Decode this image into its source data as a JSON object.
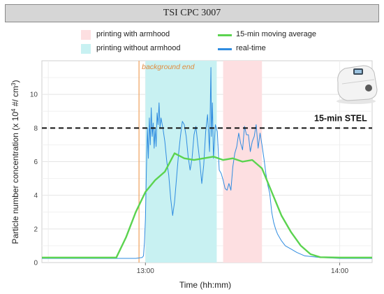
{
  "header": {
    "title": "TSI CPC 3007"
  },
  "legend": [
    {
      "label": "printing with armhood",
      "kind": "box",
      "color": "#fddfe1"
    },
    {
      "label": "printing without armhood",
      "kind": "box",
      "color": "#c8f1f2"
    },
    {
      "label": "15-min moving average",
      "kind": "line",
      "color": "#5bd34f"
    },
    {
      "label": "real-time",
      "kind": "line",
      "color": "#2f8ce0"
    }
  ],
  "annotations": {
    "background_end": "background end",
    "stel": "15-min STEL"
  },
  "chart_data": {
    "type": "line",
    "xlabel": "Time (hh:mm)",
    "ylabel_main": "Particle number concentration (x 10",
    "ylabel_sup": "4",
    "ylabel_rest": " #/ cm",
    "ylabel_sup2": "3",
    "ylabel_end": ")",
    "xlim": [
      12.467,
      14.167
    ],
    "ylim": [
      0,
      12
    ],
    "x_ticks": [
      {
        "value": 13.0,
        "label": "13:00"
      },
      {
        "value": 14.0,
        "label": "14:00"
      }
    ],
    "y_ticks": [
      0,
      2,
      4,
      6,
      8,
      10
    ],
    "grid": true,
    "threshold": {
      "value": 8,
      "label": "15-min STEL"
    },
    "background_end_x": 12.967,
    "shaded_regions": [
      {
        "label": "printing without armhood",
        "x": [
          13.0,
          13.367
        ],
        "color": "#c8f1f2"
      },
      {
        "label": "printing with armhood",
        "x": [
          13.4,
          13.6
        ],
        "color": "#fddfe1"
      }
    ],
    "series": [
      {
        "name": "real-time",
        "color": "#2f8ce0",
        "x": [
          12.467,
          12.95,
          12.983,
          12.99,
          12.995,
          13.0,
          13.005,
          13.01,
          13.015,
          13.02,
          13.025,
          13.03,
          13.035,
          13.04,
          13.045,
          13.05,
          13.055,
          13.06,
          13.065,
          13.07,
          13.075,
          13.08,
          13.09,
          13.1,
          13.11,
          13.12,
          13.13,
          13.14,
          13.15,
          13.16,
          13.17,
          13.18,
          13.19,
          13.2,
          13.21,
          13.22,
          13.23,
          13.24,
          13.25,
          13.26,
          13.27,
          13.28,
          13.29,
          13.3,
          13.31,
          13.32,
          13.33,
          13.337,
          13.34,
          13.345,
          13.35,
          13.36,
          13.37,
          13.38,
          13.39,
          13.4,
          13.41,
          13.42,
          13.43,
          13.44,
          13.45,
          13.46,
          13.47,
          13.48,
          13.49,
          13.5,
          13.51,
          13.52,
          13.53,
          13.54,
          13.55,
          13.56,
          13.57,
          13.58,
          13.59,
          13.6,
          13.61,
          13.62,
          13.63,
          13.64,
          13.65,
          13.66,
          13.67,
          13.68,
          13.7,
          13.72,
          13.75,
          13.78,
          13.82,
          13.9,
          14.0,
          14.167
        ],
        "y": [
          0.25,
          0.25,
          0.3,
          0.4,
          1.2,
          2.6,
          5.5,
          8.0,
          6.2,
          8.6,
          7.0,
          9.2,
          7.5,
          8.3,
          6.8,
          8.0,
          6.9,
          8.9,
          8.2,
          9.5,
          8.0,
          8.6,
          8.0,
          7.2,
          6.0,
          5.2,
          3.8,
          2.8,
          3.6,
          5.0,
          6.4,
          7.5,
          8.4,
          8.2,
          7.5,
          6.3,
          5.5,
          6.2,
          7.6,
          8.1,
          7.0,
          6.0,
          4.7,
          5.8,
          7.8,
          8.8,
          6.6,
          11.6,
          7.5,
          9.5,
          6.2,
          8.2,
          7.8,
          5.5,
          5.3,
          4.9,
          4.4,
          4.3,
          4.7,
          4.3,
          5.7,
          6.5,
          6.9,
          7.7,
          7.1,
          6.7,
          8.1,
          7.6,
          7.6,
          6.6,
          7.2,
          7.5,
          8.2,
          6.8,
          7.7,
          7.0,
          6.2,
          5.3,
          4.6,
          4.1,
          3.0,
          2.4,
          2.0,
          1.7,
          1.3,
          1.0,
          0.8,
          0.6,
          0.4,
          0.3,
          0.25,
          0.25
        ]
      },
      {
        "name": "15-min moving average",
        "color": "#5bd34f",
        "x": [
          12.467,
          12.85,
          12.9,
          12.95,
          13.0,
          13.05,
          13.1,
          13.15,
          13.2,
          13.25,
          13.3,
          13.35,
          13.4,
          13.45,
          13.5,
          13.55,
          13.6,
          13.65,
          13.7,
          13.75,
          13.8,
          13.85,
          13.9,
          14.0,
          14.167
        ],
        "y": [
          0.3,
          0.3,
          1.5,
          3.0,
          4.2,
          4.9,
          5.4,
          6.5,
          6.2,
          6.1,
          6.2,
          6.3,
          6.1,
          6.2,
          6.0,
          6.1,
          5.6,
          4.2,
          2.8,
          1.8,
          1.0,
          0.5,
          0.32,
          0.3,
          0.3
        ]
      }
    ]
  }
}
